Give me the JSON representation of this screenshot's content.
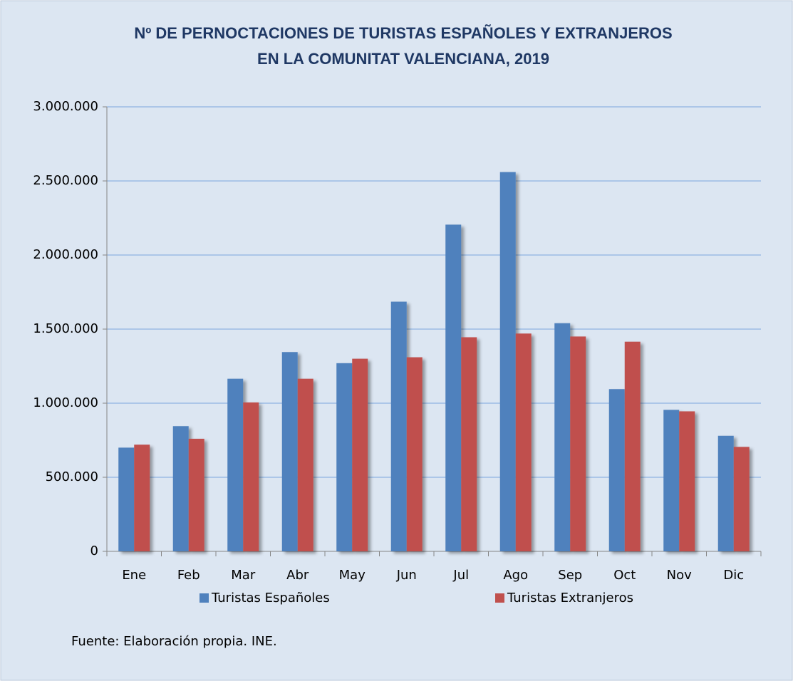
{
  "chart_data": {
    "type": "bar",
    "title": [
      "Nº DE PERNOCTACIONES DE TURISTAS ESPAÑOLES Y EXTRANJEROS",
      "EN LA COMUNITAT VALENCIANA, 2019"
    ],
    "categories": [
      "Ene",
      "Feb",
      "Mar",
      "Abr",
      "May",
      "Jun",
      "Jul",
      "Ago",
      "Sep",
      "Oct",
      "Nov",
      "Dic"
    ],
    "series": [
      {
        "name": "Turistas Españoles",
        "color": "#4f81bd",
        "values": [
          700000,
          845000,
          1165000,
          1345000,
          1270000,
          1685000,
          2205000,
          2560000,
          1540000,
          1095000,
          955000,
          780000
        ]
      },
      {
        "name": "Turistas Extranjeros",
        "color": "#c0504d",
        "values": [
          720000,
          760000,
          1005000,
          1165000,
          1300000,
          1310000,
          1445000,
          1470000,
          1450000,
          1415000,
          945000,
          705000
        ]
      }
    ],
    "ylim": [
      0,
      3000000
    ],
    "yticks": [
      0,
      {
        "value": 500000,
        "label": "500.000"
      },
      {
        "value": 1000000,
        "label": "1.000.000"
      },
      {
        "value": 1500000,
        "label": "1.500.000"
      },
      {
        "value": 2000000,
        "label": "2.000.000"
      },
      {
        "value": 2500000,
        "label": "2.500.000"
      },
      {
        "value": 3000000,
        "label": "3.000.000"
      }
    ],
    "grid": true,
    "legend": "bottom",
    "source": "Fuente: Elaboración propia. INE."
  }
}
